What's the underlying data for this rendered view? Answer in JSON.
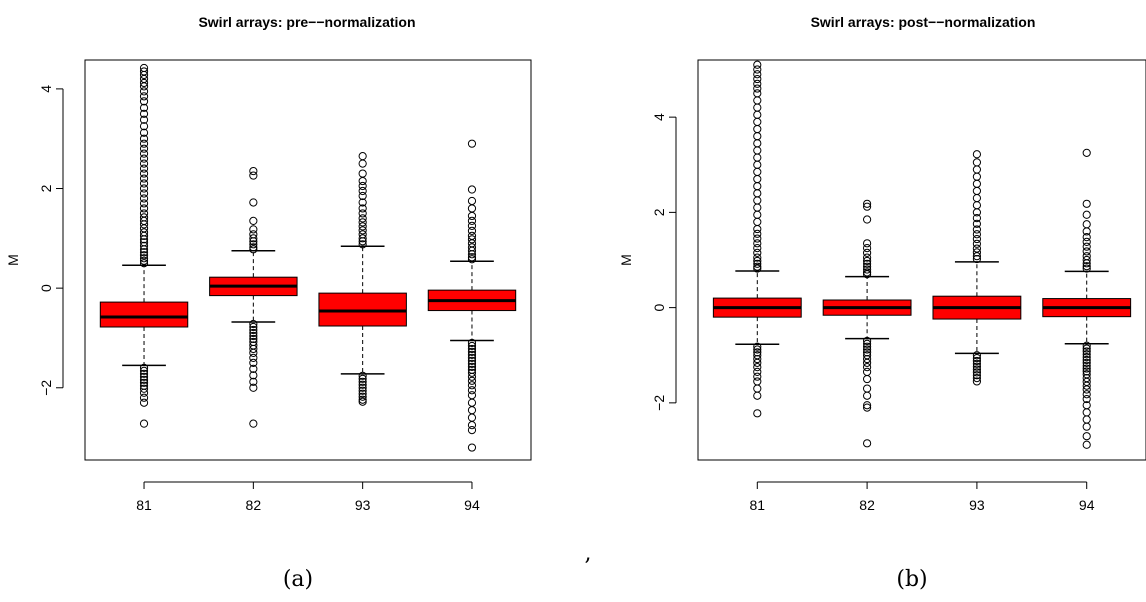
{
  "chart_data": [
    {
      "type": "box",
      "title": "Swirl arrays: pre−−normalization",
      "ylabel": "M",
      "xlabel": "",
      "ylim": [
        -3.45,
        4.58
      ],
      "yticks": [
        -2,
        0,
        2,
        4
      ],
      "yticklabels": [
        "−2",
        "0",
        "2",
        "4"
      ],
      "categories": [
        "81",
        "82",
        "93",
        "94"
      ],
      "box_color": "#ff0000",
      "caption": "(a)",
      "boxes": [
        {
          "whisker_low": -1.55,
          "q1": -0.78,
          "median": -0.58,
          "q3": -0.28,
          "whisker_high": 0.46,
          "outliers": [
            4.42,
            4.35,
            4.28,
            4.2,
            4.12,
            4.05,
            3.95,
            3.85,
            3.75,
            3.62,
            3.5,
            3.38,
            3.25,
            3.12,
            3.0,
            2.9,
            2.8,
            2.7,
            2.6,
            2.5,
            2.4,
            2.3,
            2.2,
            2.1,
            2.0,
            1.9,
            1.8,
            1.7,
            1.6,
            1.5,
            1.42,
            1.35,
            1.28,
            1.2,
            1.12,
            1.05,
            0.98,
            0.92,
            0.85,
            0.78,
            0.72,
            0.66,
            0.6,
            0.55,
            0.5,
            -1.6,
            -1.66,
            -1.72,
            -1.78,
            -1.84,
            -1.9,
            -1.96,
            -2.02,
            -2.1,
            -2.2,
            -2.3,
            -2.72
          ]
        },
        {
          "whisker_low": -0.68,
          "q1": -0.15,
          "median": 0.04,
          "q3": 0.22,
          "whisker_high": 0.75,
          "outliers": [
            2.35,
            2.26,
            1.72,
            1.35,
            1.18,
            1.08,
            1.0,
            0.94,
            0.88,
            0.82,
            0.78,
            -0.72,
            -0.78,
            -0.84,
            -0.9,
            -0.96,
            -1.02,
            -1.08,
            -1.15,
            -1.22,
            -1.3,
            -1.4,
            -1.5,
            -1.62,
            -1.75,
            -1.88,
            -2.0,
            -2.72
          ]
        },
        {
          "whisker_low": -1.72,
          "q1": -0.76,
          "median": -0.46,
          "q3": -0.1,
          "whisker_high": 0.84,
          "outliers": [
            2.65,
            2.5,
            2.3,
            2.15,
            2.05,
            1.95,
            1.85,
            1.72,
            1.6,
            1.5,
            1.4,
            1.32,
            1.24,
            1.16,
            1.08,
            1.0,
            0.94,
            0.88,
            -1.76,
            -1.82,
            -1.88,
            -1.94,
            -2.0,
            -2.06,
            -2.12,
            -2.18,
            -2.24,
            -2.28
          ]
        },
        {
          "whisker_low": -1.05,
          "q1": -0.45,
          "median": -0.25,
          "q3": -0.04,
          "whisker_high": 0.54,
          "outliers": [
            2.9,
            1.98,
            1.75,
            1.6,
            1.45,
            1.35,
            1.25,
            1.15,
            1.05,
            0.98,
            0.9,
            0.82,
            0.75,
            0.68,
            0.62,
            0.58,
            -1.1,
            -1.16,
            -1.22,
            -1.28,
            -1.34,
            -1.4,
            -1.46,
            -1.52,
            -1.58,
            -1.64,
            -1.7,
            -1.78,
            -1.86,
            -1.95,
            -2.05,
            -2.15,
            -2.3,
            -2.45,
            -2.6,
            -2.75,
            -2.85,
            -3.2
          ]
        }
      ]
    },
    {
      "type": "box",
      "title": "Swirl arrays: post−−normalization",
      "ylabel": "M",
      "xlabel": "",
      "ylim": [
        -3.2,
        5.2
      ],
      "yticks": [
        -2,
        0,
        2,
        4
      ],
      "yticklabels": [
        "−2",
        "0",
        "2",
        "4"
      ],
      "categories": [
        "81",
        "82",
        "93",
        "94"
      ],
      "box_color": "#ff0000",
      "caption": "(b)",
      "boxes": [
        {
          "whisker_low": -0.77,
          "q1": -0.2,
          "median": 0.0,
          "q3": 0.2,
          "whisker_high": 0.77,
          "outliers": [
            5.1,
            5.0,
            4.9,
            4.8,
            4.7,
            4.6,
            4.5,
            4.35,
            4.2,
            4.05,
            3.9,
            3.75,
            3.6,
            3.45,
            3.3,
            3.15,
            3.0,
            2.85,
            2.7,
            2.55,
            2.4,
            2.25,
            2.1,
            1.95,
            1.8,
            1.65,
            1.55,
            1.45,
            1.35,
            1.25,
            1.15,
            1.05,
            0.98,
            0.92,
            0.86,
            0.82,
            -0.82,
            -0.88,
            -0.94,
            -1.0,
            -1.08,
            -1.16,
            -1.25,
            -1.35,
            -1.45,
            -1.55,
            -1.7,
            -1.85,
            -2.22
          ]
        },
        {
          "whisker_low": -0.65,
          "q1": -0.16,
          "median": 0.0,
          "q3": 0.16,
          "whisker_high": 0.65,
          "outliers": [
            2.18,
            2.12,
            1.85,
            1.35,
            1.25,
            1.15,
            1.05,
            0.98,
            0.92,
            0.86,
            0.8,
            0.74,
            0.7,
            -0.7,
            -0.76,
            -0.82,
            -0.88,
            -0.94,
            -1.0,
            -1.08,
            -1.16,
            -1.25,
            -1.35,
            -1.5,
            -1.7,
            -1.85,
            -2.05,
            -2.1,
            -2.85
          ]
        },
        {
          "whisker_low": -0.96,
          "q1": -0.24,
          "median": 0.0,
          "q3": 0.24,
          "whisker_high": 0.96,
          "outliers": [
            3.22,
            3.05,
            2.9,
            2.75,
            2.6,
            2.45,
            2.3,
            2.15,
            2.0,
            1.88,
            1.76,
            1.64,
            1.54,
            1.44,
            1.34,
            1.24,
            1.16,
            1.08,
            1.02,
            -1.0,
            -1.06,
            -1.12,
            -1.18,
            -1.24,
            -1.3,
            -1.36,
            -1.42,
            -1.48,
            -1.55
          ]
        },
        {
          "whisker_low": -0.76,
          "q1": -0.19,
          "median": 0.0,
          "q3": 0.19,
          "whisker_high": 0.76,
          "outliers": [
            3.25,
            2.18,
            1.95,
            1.75,
            1.6,
            1.48,
            1.38,
            1.28,
            1.18,
            1.08,
            1.0,
            0.93,
            0.87,
            0.82,
            -0.8,
            -0.86,
            -0.92,
            -0.98,
            -1.04,
            -1.1,
            -1.16,
            -1.22,
            -1.28,
            -1.34,
            -1.4,
            -1.48,
            -1.56,
            -1.64,
            -1.72,
            -1.82,
            -1.92,
            -2.05,
            -2.2,
            -2.35,
            -2.5,
            -2.7,
            -2.88
          ]
        }
      ]
    }
  ],
  "separator": ","
}
